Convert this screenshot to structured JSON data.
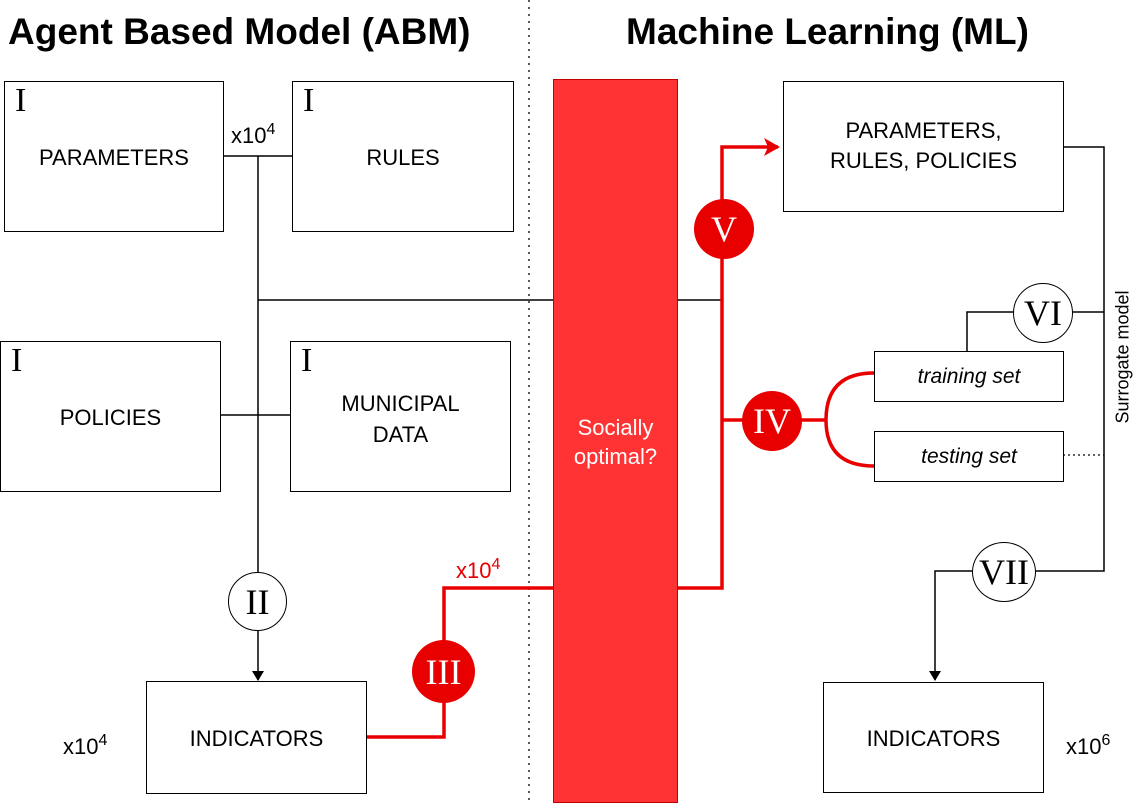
{
  "headings": {
    "abm": "Agent Based Model (ABM)",
    "ml": "Machine Learning (ML)"
  },
  "abm": {
    "parameters": {
      "marker": "I",
      "label": "PARAMETERS"
    },
    "rules": {
      "marker": "I",
      "label": "RULES"
    },
    "policies": {
      "marker": "I",
      "label": "POLICIES"
    },
    "municipal_data": {
      "marker": "I",
      "label_line1": "MUNICIPAL",
      "label_line2": "DATA"
    },
    "indicators": {
      "label": "INDICATORS"
    },
    "mult_runs": {
      "base": "x10",
      "exp": "4"
    },
    "mult_indicators": {
      "base": "x10",
      "exp": "4"
    },
    "step_ii": "II",
    "step_iii": "III",
    "mult_red": {
      "base": "x10",
      "exp": "4"
    }
  },
  "filter_bar": {
    "label_line1": "Socially",
    "label_line2": "optimal?",
    "color": "#ff3333"
  },
  "ml": {
    "params_box": {
      "label_line1": "PARAMETERS,",
      "label_line2": "RULES, POLICIES"
    },
    "training_set": "training set",
    "testing_set": "testing set",
    "indicators": {
      "label": "INDICATORS"
    },
    "mult_indicators": {
      "base": "x10",
      "exp": "6"
    },
    "surrogate_label": "Surrogate model",
    "step_iv": "IV",
    "step_v": "V",
    "step_vi": "VI",
    "step_vii": "VII"
  },
  "colors": {
    "accent_red": "#e80000",
    "line": "#000000"
  }
}
